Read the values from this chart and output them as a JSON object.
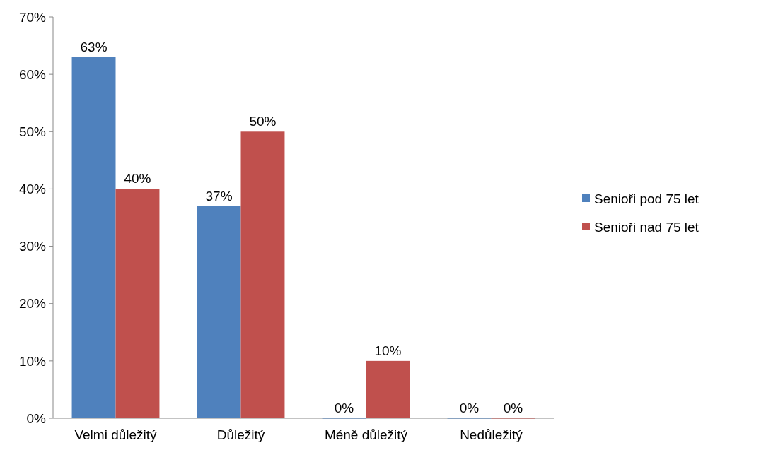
{
  "chart_data": {
    "type": "bar",
    "categories": [
      "Velmi důležitý",
      "Důležitý",
      "Méně důležitý",
      "Nedůležitý"
    ],
    "series": [
      {
        "name": "Senioři pod 75 let",
        "color": "#4f81bd",
        "values": [
          63,
          37,
          0,
          0
        ],
        "value_labels": [
          "63%",
          "37%",
          "0%",
          "0%"
        ]
      },
      {
        "name": "Senioři nad 75 let",
        "color": "#c0504d",
        "values": [
          40,
          50,
          10,
          0
        ],
        "value_labels": [
          "40%",
          "50%",
          "10%",
          "0%"
        ]
      }
    ],
    "ylim": [
      0,
      70
    ],
    "yticks": [
      {
        "value": 0,
        "label": "0%"
      },
      {
        "value": 10,
        "label": "10%"
      },
      {
        "value": 20,
        "label": "20%"
      },
      {
        "value": 30,
        "label": "30%"
      },
      {
        "value": 40,
        "label": "40%"
      },
      {
        "value": 50,
        "label": "50%"
      },
      {
        "value": 60,
        "label": "60%"
      },
      {
        "value": 70,
        "label": "70%"
      }
    ],
    "grid": false,
    "legend": "right"
  }
}
